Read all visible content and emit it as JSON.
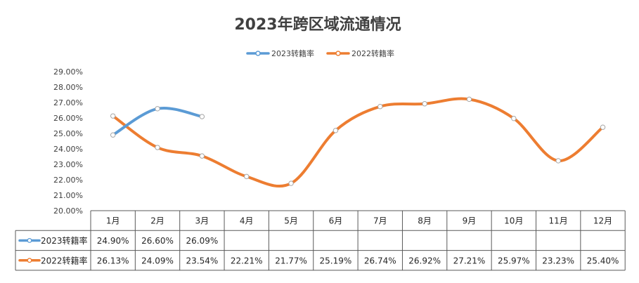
{
  "chart_data": {
    "type": "line",
    "title": "2023年跨区域流通情况",
    "categories": [
      "1月",
      "2月",
      "3月",
      "4月",
      "5月",
      "6月",
      "7月",
      "8月",
      "9月",
      "10月",
      "11月",
      "12月"
    ],
    "ylim": [
      20.0,
      29.0
    ],
    "yticks": [
      "20.00%",
      "21.00%",
      "22.00%",
      "23.00%",
      "24.00%",
      "25.00%",
      "26.00%",
      "27.00%",
      "28.00%",
      "29.00%"
    ],
    "grid": false,
    "legend_position": "top",
    "smooth": true,
    "series": [
      {
        "name": "2023转籍率",
        "color": "#5b9bd5",
        "values": [
          24.9,
          26.6,
          26.09,
          null,
          null,
          null,
          null,
          null,
          null,
          null,
          null,
          null
        ],
        "labels": [
          "24.90%",
          "26.60%",
          "26.09%",
          "",
          "",
          "",
          "",
          "",
          "",
          "",
          "",
          ""
        ]
      },
      {
        "name": "2022转籍率",
        "color": "#ed7d31",
        "values": [
          26.13,
          24.09,
          23.54,
          22.21,
          21.77,
          25.19,
          26.74,
          26.92,
          27.21,
          25.97,
          23.23,
          25.4
        ],
        "labels": [
          "26.13%",
          "24.09%",
          "23.54%",
          "22.21%",
          "21.77%",
          "25.19%",
          "26.74%",
          "26.92%",
          "27.21%",
          "25.97%",
          "23.23%",
          "25.40%"
        ]
      }
    ]
  }
}
